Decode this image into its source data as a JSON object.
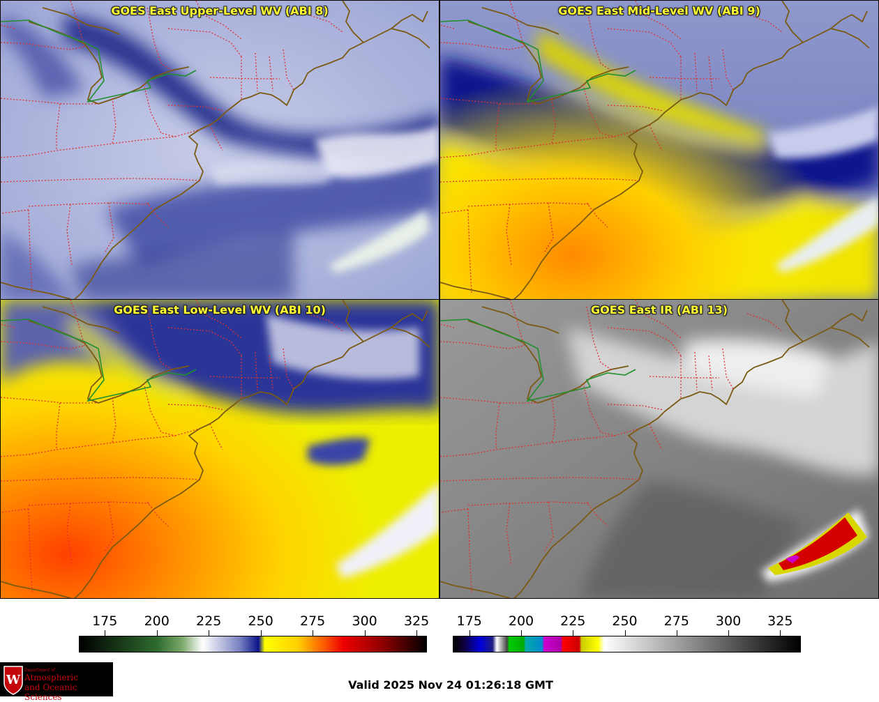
{
  "panels": [
    {
      "id": "upper",
      "title": "GOES East Upper-Level WV (ABI 8)"
    },
    {
      "id": "mid",
      "title": "GOES East Mid-Level WV (ABI 9)"
    },
    {
      "id": "low",
      "title": "GOES East Low-Level WV (ABI 10)"
    },
    {
      "id": "ir",
      "title": "GOES East IR (ABI 13)"
    }
  ],
  "colorbar_wv": {
    "ticks": [
      "175",
      "200",
      "225",
      "250",
      "275",
      "300",
      "325"
    ],
    "range": [
      162.5,
      330
    ],
    "stops": [
      {
        "v": 162.5,
        "c": "#000000"
      },
      {
        "v": 200,
        "c": "#2e6b2e"
      },
      {
        "v": 212,
        "c": "#7aa86a"
      },
      {
        "v": 222,
        "c": "#ffffff"
      },
      {
        "v": 240,
        "c": "#7880c0"
      },
      {
        "v": 249,
        "c": "#0a148a"
      },
      {
        "v": 252,
        "c": "#ffff00"
      },
      {
        "v": 268,
        "c": "#ffd000"
      },
      {
        "v": 280,
        "c": "#ff6000"
      },
      {
        "v": 290,
        "c": "#ee0000"
      },
      {
        "v": 310,
        "c": "#880000"
      },
      {
        "v": 330,
        "c": "#000000"
      }
    ]
  },
  "colorbar_ir": {
    "ticks": [
      "175",
      "200",
      "225",
      "250",
      "275",
      "300",
      "325"
    ],
    "range": [
      167,
      335
    ],
    "stops": [
      {
        "v": 167,
        "c": "#000000"
      },
      {
        "v": 172,
        "c": "#10003c"
      },
      {
        "v": 180,
        "c": "#0000dd"
      },
      {
        "v": 186,
        "c": "#1e1e80"
      },
      {
        "v": 188,
        "c": "#ffffff"
      },
      {
        "v": 193,
        "c": "#444444"
      },
      {
        "v": 194,
        "c": "#00cc00"
      },
      {
        "v": 201,
        "c": "#00aa00"
      },
      {
        "v": 202,
        "c": "#00aaaa"
      },
      {
        "v": 210,
        "c": "#0088cc"
      },
      {
        "v": 211,
        "c": "#cc00cc"
      },
      {
        "v": 219,
        "c": "#aa00aa"
      },
      {
        "v": 220,
        "c": "#ff0000"
      },
      {
        "v": 228,
        "c": "#cc0000"
      },
      {
        "v": 229,
        "c": "#cccc00"
      },
      {
        "v": 237,
        "c": "#ffff00"
      },
      {
        "v": 240,
        "c": "#ffffff"
      },
      {
        "v": 335,
        "c": "#000000"
      }
    ]
  },
  "valid_time": "Valid 2025 Nov 24 01:26:18 GMT",
  "logo": {
    "dept": "Department of",
    "line1": "Atmospheric",
    "line2": "and Oceanic Sciences"
  },
  "colors": {
    "coast": "#7a5a12",
    "borders": "#e03030",
    "canada_us": "#1f8f2f",
    "title_text": "#ffff33"
  }
}
